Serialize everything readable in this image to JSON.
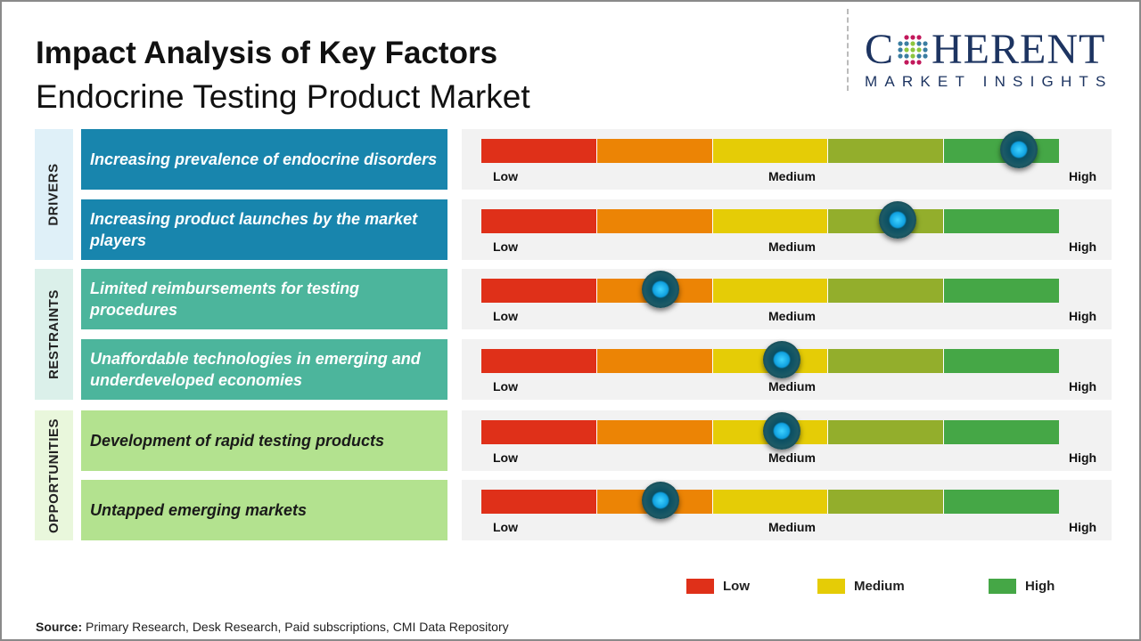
{
  "title": "Impact Analysis of Key Factors",
  "subtitle": "Endocrine Testing Product Market",
  "logo": {
    "main_left": "C",
    "main_right": "HERENT",
    "sub": "MARKET INSIGHTS"
  },
  "colors": {
    "drivers": "#1885ad",
    "restraints": "#4cb59c",
    "opportunities": "#b3e28f",
    "scale": [
      "#df3019",
      "#ec8405",
      "#e5cc06",
      "#93ae2c",
      "#45a746"
    ]
  },
  "categories": [
    {
      "label": "DRIVERS",
      "bg": "#dff0f8"
    },
    {
      "label": "RESTRAINTS",
      "bg": "#dbf0ea"
    },
    {
      "label": "OPPORTUNITIES",
      "bg": "#e9f7dc"
    }
  ],
  "chart_data": {
    "type": "gauge-bars",
    "scale_labels": [
      "Low",
      "Medium",
      "High"
    ],
    "value_range": [
      0,
      100
    ],
    "factors": [
      {
        "category": "DRIVERS",
        "label": "Increasing prevalence of endocrine disorders",
        "impact": 93
      },
      {
        "category": "DRIVERS",
        "label": "Increasing product launches by the market players",
        "impact": 72
      },
      {
        "category": "RESTRAINTS",
        "label": "Limited reimbursements for testing procedures",
        "impact": 31
      },
      {
        "category": "RESTRAINTS",
        "label": "Unaffordable technologies in emerging and underdeveloped economies",
        "impact": 52
      },
      {
        "category": "OPPORTUNITIES",
        "label": "Development of rapid testing products",
        "impact": 52
      },
      {
        "category": "OPPORTUNITIES",
        "label": "Untapped emerging markets",
        "impact": 31
      }
    ],
    "legend": [
      {
        "label": "Low",
        "color": "#df3019"
      },
      {
        "label": "Medium",
        "color": "#e5cc06"
      },
      {
        "label": "High",
        "color": "#45a746"
      }
    ]
  },
  "source": {
    "label": "Source:",
    "text": " Primary Research, Desk Research, Paid subscriptions, CMI Data Repository"
  }
}
